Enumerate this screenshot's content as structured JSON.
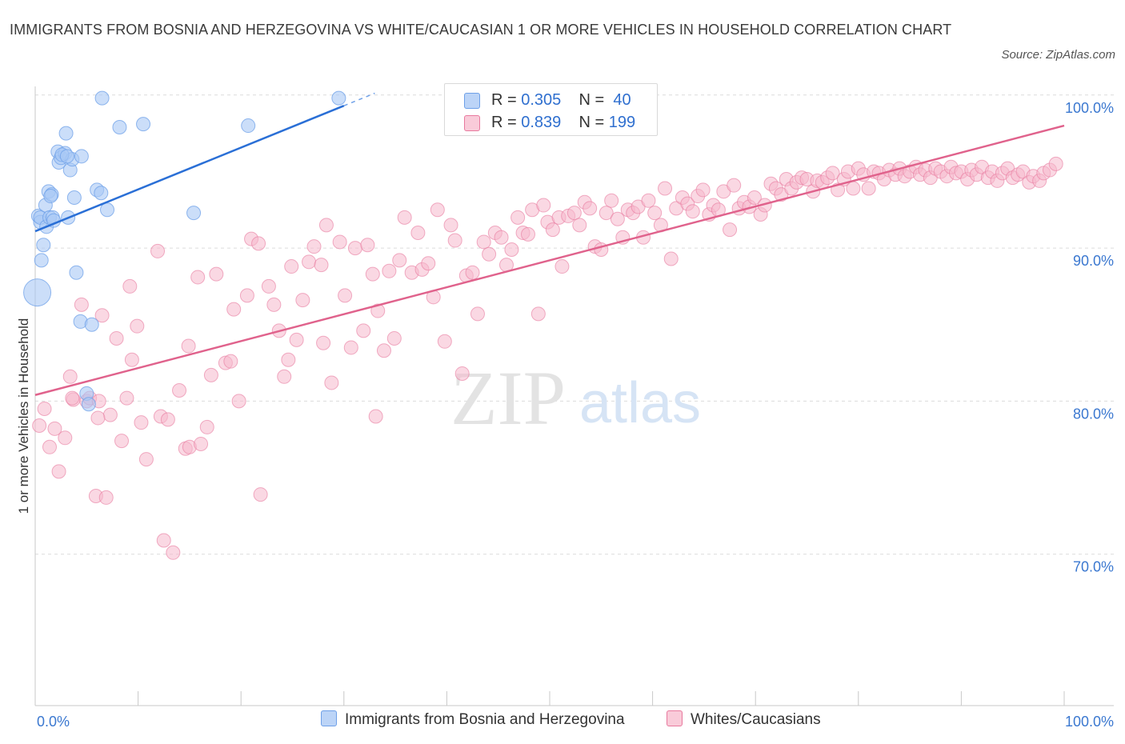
{
  "title": "IMMIGRANTS FROM BOSNIA AND HERZEGOVINA VS WHITE/CAUCASIAN 1 OR MORE VEHICLES IN HOUSEHOLD CORRELATION CHART",
  "source": "Source: ZipAtlas.com",
  "watermark": {
    "zip": "ZIP",
    "atlas": "atlas"
  },
  "legend": {
    "r_label": "R =",
    "n_label": "N =",
    "rows": [
      {
        "r": "0.305",
        "n": "40",
        "color": "#a9c8f5"
      },
      {
        "r": "0.839",
        "n": "199",
        "color": "#f6b8cc"
      }
    ]
  },
  "bottom_legend": [
    {
      "label": "Immigrants from Bosnia and Herzegovina",
      "color": "#a9c8f5"
    },
    {
      "label": "Whites/Caucasians",
      "color": "#f6b8cc"
    }
  ],
  "chart_data": {
    "type": "scatter",
    "xlabel": "",
    "ylabel": "1 or more Vehicles in Household",
    "xlim": [
      0,
      100
    ],
    "ylim": [
      60,
      100
    ],
    "x_tick_labels": [
      "0.0%",
      "100.0%"
    ],
    "y_ticks": [
      70,
      80,
      90,
      100
    ],
    "y_tick_labels": [
      "70.0%",
      "80.0%",
      "90.0%",
      "100.0%"
    ],
    "grid": true,
    "series": [
      {
        "name": "Immigrants from Bosnia and Herzegovina",
        "color": "#6ea0e8",
        "fill": "#a9c8f5",
        "trend": {
          "x": [
            0,
            30
          ],
          "y": [
            91.1,
            99.3
          ],
          "dashed_to": [
            33,
            100
          ]
        },
        "points": [
          [
            0.3,
            92.1
          ],
          [
            0.5,
            91.7
          ],
          [
            0.5,
            92.0
          ],
          [
            0.6,
            89.2
          ],
          [
            0.8,
            90.2
          ],
          [
            1.0,
            92.8
          ],
          [
            1.1,
            91.4
          ],
          [
            1.3,
            93.7
          ],
          [
            1.4,
            92.0
          ],
          [
            1.6,
            93.5
          ],
          [
            1.7,
            92.0
          ],
          [
            1.8,
            91.8
          ],
          [
            2.2,
            96.3
          ],
          [
            2.3,
            95.6
          ],
          [
            2.5,
            95.9
          ],
          [
            2.9,
            96.2
          ],
          [
            3.0,
            97.5
          ],
          [
            3.2,
            92.0
          ],
          [
            3.4,
            95.1
          ],
          [
            3.6,
            95.8
          ],
          [
            3.8,
            93.3
          ],
          [
            4.0,
            88.4
          ],
          [
            4.5,
            96.0
          ],
          [
            4.4,
            85.2
          ],
          [
            5.0,
            80.5
          ],
          [
            5.2,
            79.8
          ],
          [
            5.5,
            85.0
          ],
          [
            6.0,
            93.8
          ],
          [
            6.4,
            93.6
          ],
          [
            7.0,
            92.5
          ],
          [
            6.5,
            99.8
          ],
          [
            8.2,
            97.9
          ],
          [
            10.5,
            98.1
          ],
          [
            15.4,
            92.3
          ],
          [
            20.7,
            98.0
          ],
          [
            29.5,
            99.8
          ],
          [
            0.2,
            87.1
          ],
          [
            1.5,
            93.4
          ],
          [
            2.6,
            96.1
          ],
          [
            3.1,
            96.0
          ]
        ]
      },
      {
        "name": "Whites/Caucasians",
        "color": "#e8799e",
        "fill": "#f6b8cc",
        "trend": {
          "x": [
            0,
            100
          ],
          "y": [
            80.4,
            98.0
          ]
        },
        "points": [
          [
            0.4,
            78.4
          ],
          [
            0.9,
            79.5
          ],
          [
            1.4,
            77.0
          ],
          [
            1.9,
            78.2
          ],
          [
            2.3,
            75.4
          ],
          [
            2.9,
            77.6
          ],
          [
            3.4,
            81.6
          ],
          [
            3.7,
            80.1
          ],
          [
            4.5,
            86.3
          ],
          [
            5.0,
            80.0
          ],
          [
            5.3,
            80.2
          ],
          [
            5.9,
            73.8
          ],
          [
            6.2,
            80.0
          ],
          [
            6.5,
            85.6
          ],
          [
            6.9,
            73.7
          ],
          [
            7.3,
            79.1
          ],
          [
            7.9,
            84.1
          ],
          [
            8.4,
            77.4
          ],
          [
            8.9,
            80.2
          ],
          [
            9.2,
            87.5
          ],
          [
            9.9,
            84.9
          ],
          [
            10.3,
            78.6
          ],
          [
            10.8,
            76.2
          ],
          [
            11.9,
            89.8
          ],
          [
            12.2,
            79.0
          ],
          [
            12.5,
            70.9
          ],
          [
            12.9,
            78.8
          ],
          [
            13.4,
            70.1
          ],
          [
            14.0,
            80.7
          ],
          [
            14.6,
            76.9
          ],
          [
            15.0,
            77.0
          ],
          [
            15.8,
            88.1
          ],
          [
            16.1,
            77.2
          ],
          [
            16.7,
            78.3
          ],
          [
            17.1,
            81.7
          ],
          [
            17.6,
            88.3
          ],
          [
            18.5,
            82.5
          ],
          [
            19.3,
            86.0
          ],
          [
            19.8,
            80.0
          ],
          [
            20.6,
            86.9
          ],
          [
            21.0,
            90.6
          ],
          [
            21.7,
            90.3
          ],
          [
            21.9,
            73.9
          ],
          [
            22.7,
            87.5
          ],
          [
            23.2,
            86.3
          ],
          [
            23.7,
            84.6
          ],
          [
            24.2,
            81.6
          ],
          [
            24.9,
            88.8
          ],
          [
            25.4,
            84.0
          ],
          [
            26.0,
            86.6
          ],
          [
            26.6,
            89.1
          ],
          [
            27.1,
            90.1
          ],
          [
            27.8,
            88.9
          ],
          [
            28.3,
            91.5
          ],
          [
            28.8,
            81.2
          ],
          [
            29.6,
            90.4
          ],
          [
            30.1,
            86.9
          ],
          [
            30.7,
            83.5
          ],
          [
            31.1,
            90.0
          ],
          [
            31.9,
            84.6
          ],
          [
            32.3,
            90.2
          ],
          [
            32.8,
            88.3
          ],
          [
            33.3,
            85.9
          ],
          [
            33.9,
            83.3
          ],
          [
            34.4,
            88.5
          ],
          [
            34.9,
            84.1
          ],
          [
            35.4,
            89.2
          ],
          [
            35.9,
            92.0
          ],
          [
            36.6,
            88.4
          ],
          [
            37.2,
            91.0
          ],
          [
            37.6,
            88.6
          ],
          [
            38.2,
            89.0
          ],
          [
            38.7,
            86.8
          ],
          [
            39.1,
            92.5
          ],
          [
            39.8,
            83.9
          ],
          [
            40.4,
            91.5
          ],
          [
            40.8,
            90.5
          ],
          [
            41.5,
            81.8
          ],
          [
            41.9,
            88.2
          ],
          [
            42.5,
            88.4
          ],
          [
            43.0,
            85.7
          ],
          [
            43.6,
            90.4
          ],
          [
            44.1,
            89.6
          ],
          [
            44.7,
            91.0
          ],
          [
            45.3,
            90.7
          ],
          [
            45.8,
            88.9
          ],
          [
            46.3,
            89.9
          ],
          [
            46.9,
            92.0
          ],
          [
            47.4,
            91.0
          ],
          [
            47.9,
            90.9
          ],
          [
            48.3,
            92.5
          ],
          [
            48.9,
            85.7
          ],
          [
            49.4,
            92.8
          ],
          [
            49.8,
            91.7
          ],
          [
            50.3,
            91.2
          ],
          [
            50.9,
            92.0
          ],
          [
            51.2,
            88.8
          ],
          [
            51.8,
            92.1
          ],
          [
            52.4,
            92.3
          ],
          [
            52.9,
            91.5
          ],
          [
            53.4,
            93.0
          ],
          [
            53.9,
            92.6
          ],
          [
            54.4,
            90.1
          ],
          [
            55.0,
            89.9
          ],
          [
            55.5,
            92.3
          ],
          [
            56.0,
            93.1
          ],
          [
            56.6,
            91.9
          ],
          [
            57.1,
            90.7
          ],
          [
            57.6,
            92.5
          ],
          [
            58.1,
            92.3
          ],
          [
            58.6,
            92.7
          ],
          [
            59.1,
            90.7
          ],
          [
            59.6,
            93.1
          ],
          [
            60.2,
            92.3
          ],
          [
            60.8,
            91.5
          ],
          [
            61.2,
            93.9
          ],
          [
            61.8,
            89.3
          ],
          [
            62.3,
            92.6
          ],
          [
            62.9,
            93.3
          ],
          [
            63.4,
            92.9
          ],
          [
            63.9,
            92.4
          ],
          [
            64.4,
            93.4
          ],
          [
            64.9,
            93.8
          ],
          [
            65.5,
            92.2
          ],
          [
            65.9,
            92.8
          ],
          [
            66.4,
            92.5
          ],
          [
            66.9,
            93.7
          ],
          [
            67.5,
            91.2
          ],
          [
            67.9,
            94.1
          ],
          [
            68.4,
            92.6
          ],
          [
            68.9,
            93.0
          ],
          [
            69.4,
            92.7
          ],
          [
            69.9,
            93.3
          ],
          [
            70.5,
            92.2
          ],
          [
            70.9,
            92.8
          ],
          [
            71.5,
            94.2
          ],
          [
            72.0,
            93.9
          ],
          [
            72.5,
            93.5
          ],
          [
            73.0,
            94.5
          ],
          [
            73.5,
            93.9
          ],
          [
            74.0,
            94.3
          ],
          [
            74.5,
            94.6
          ],
          [
            75.0,
            94.5
          ],
          [
            75.6,
            93.7
          ],
          [
            76.0,
            94.4
          ],
          [
            76.5,
            94.3
          ],
          [
            77.0,
            94.6
          ],
          [
            77.5,
            94.9
          ],
          [
            78.0,
            93.8
          ],
          [
            78.6,
            94.5
          ],
          [
            79.0,
            95.0
          ],
          [
            79.5,
            93.9
          ],
          [
            80.0,
            95.2
          ],
          [
            80.5,
            94.8
          ],
          [
            81.0,
            93.9
          ],
          [
            81.5,
            95.0
          ],
          [
            82.0,
            94.9
          ],
          [
            82.5,
            94.5
          ],
          [
            83.0,
            95.1
          ],
          [
            83.6,
            94.8
          ],
          [
            84.0,
            95.2
          ],
          [
            84.5,
            94.7
          ],
          [
            85.0,
            95.0
          ],
          [
            85.6,
            95.3
          ],
          [
            86.0,
            94.8
          ],
          [
            86.5,
            95.1
          ],
          [
            87.0,
            94.6
          ],
          [
            87.5,
            95.2
          ],
          [
            88.0,
            95.0
          ],
          [
            88.6,
            94.7
          ],
          [
            89.0,
            95.3
          ],
          [
            89.5,
            94.9
          ],
          [
            90.0,
            95.0
          ],
          [
            90.6,
            94.5
          ],
          [
            91.0,
            95.1
          ],
          [
            91.5,
            94.8
          ],
          [
            92.0,
            95.3
          ],
          [
            92.6,
            94.6
          ],
          [
            93.0,
            95.0
          ],
          [
            93.5,
            94.4
          ],
          [
            94.0,
            94.9
          ],
          [
            94.5,
            95.2
          ],
          [
            95.0,
            94.6
          ],
          [
            95.5,
            94.8
          ],
          [
            96.0,
            95.0
          ],
          [
            96.6,
            94.3
          ],
          [
            97.0,
            94.7
          ],
          [
            97.6,
            94.4
          ],
          [
            98.0,
            94.9
          ],
          [
            98.6,
            95.1
          ],
          [
            99.2,
            95.5
          ],
          [
            3.6,
            80.2
          ],
          [
            6.1,
            78.9
          ],
          [
            9.4,
            82.7
          ],
          [
            14.9,
            83.6
          ],
          [
            19.0,
            82.6
          ],
          [
            24.6,
            82.7
          ],
          [
            28.0,
            83.8
          ],
          [
            33.1,
            79.0
          ]
        ]
      }
    ]
  }
}
